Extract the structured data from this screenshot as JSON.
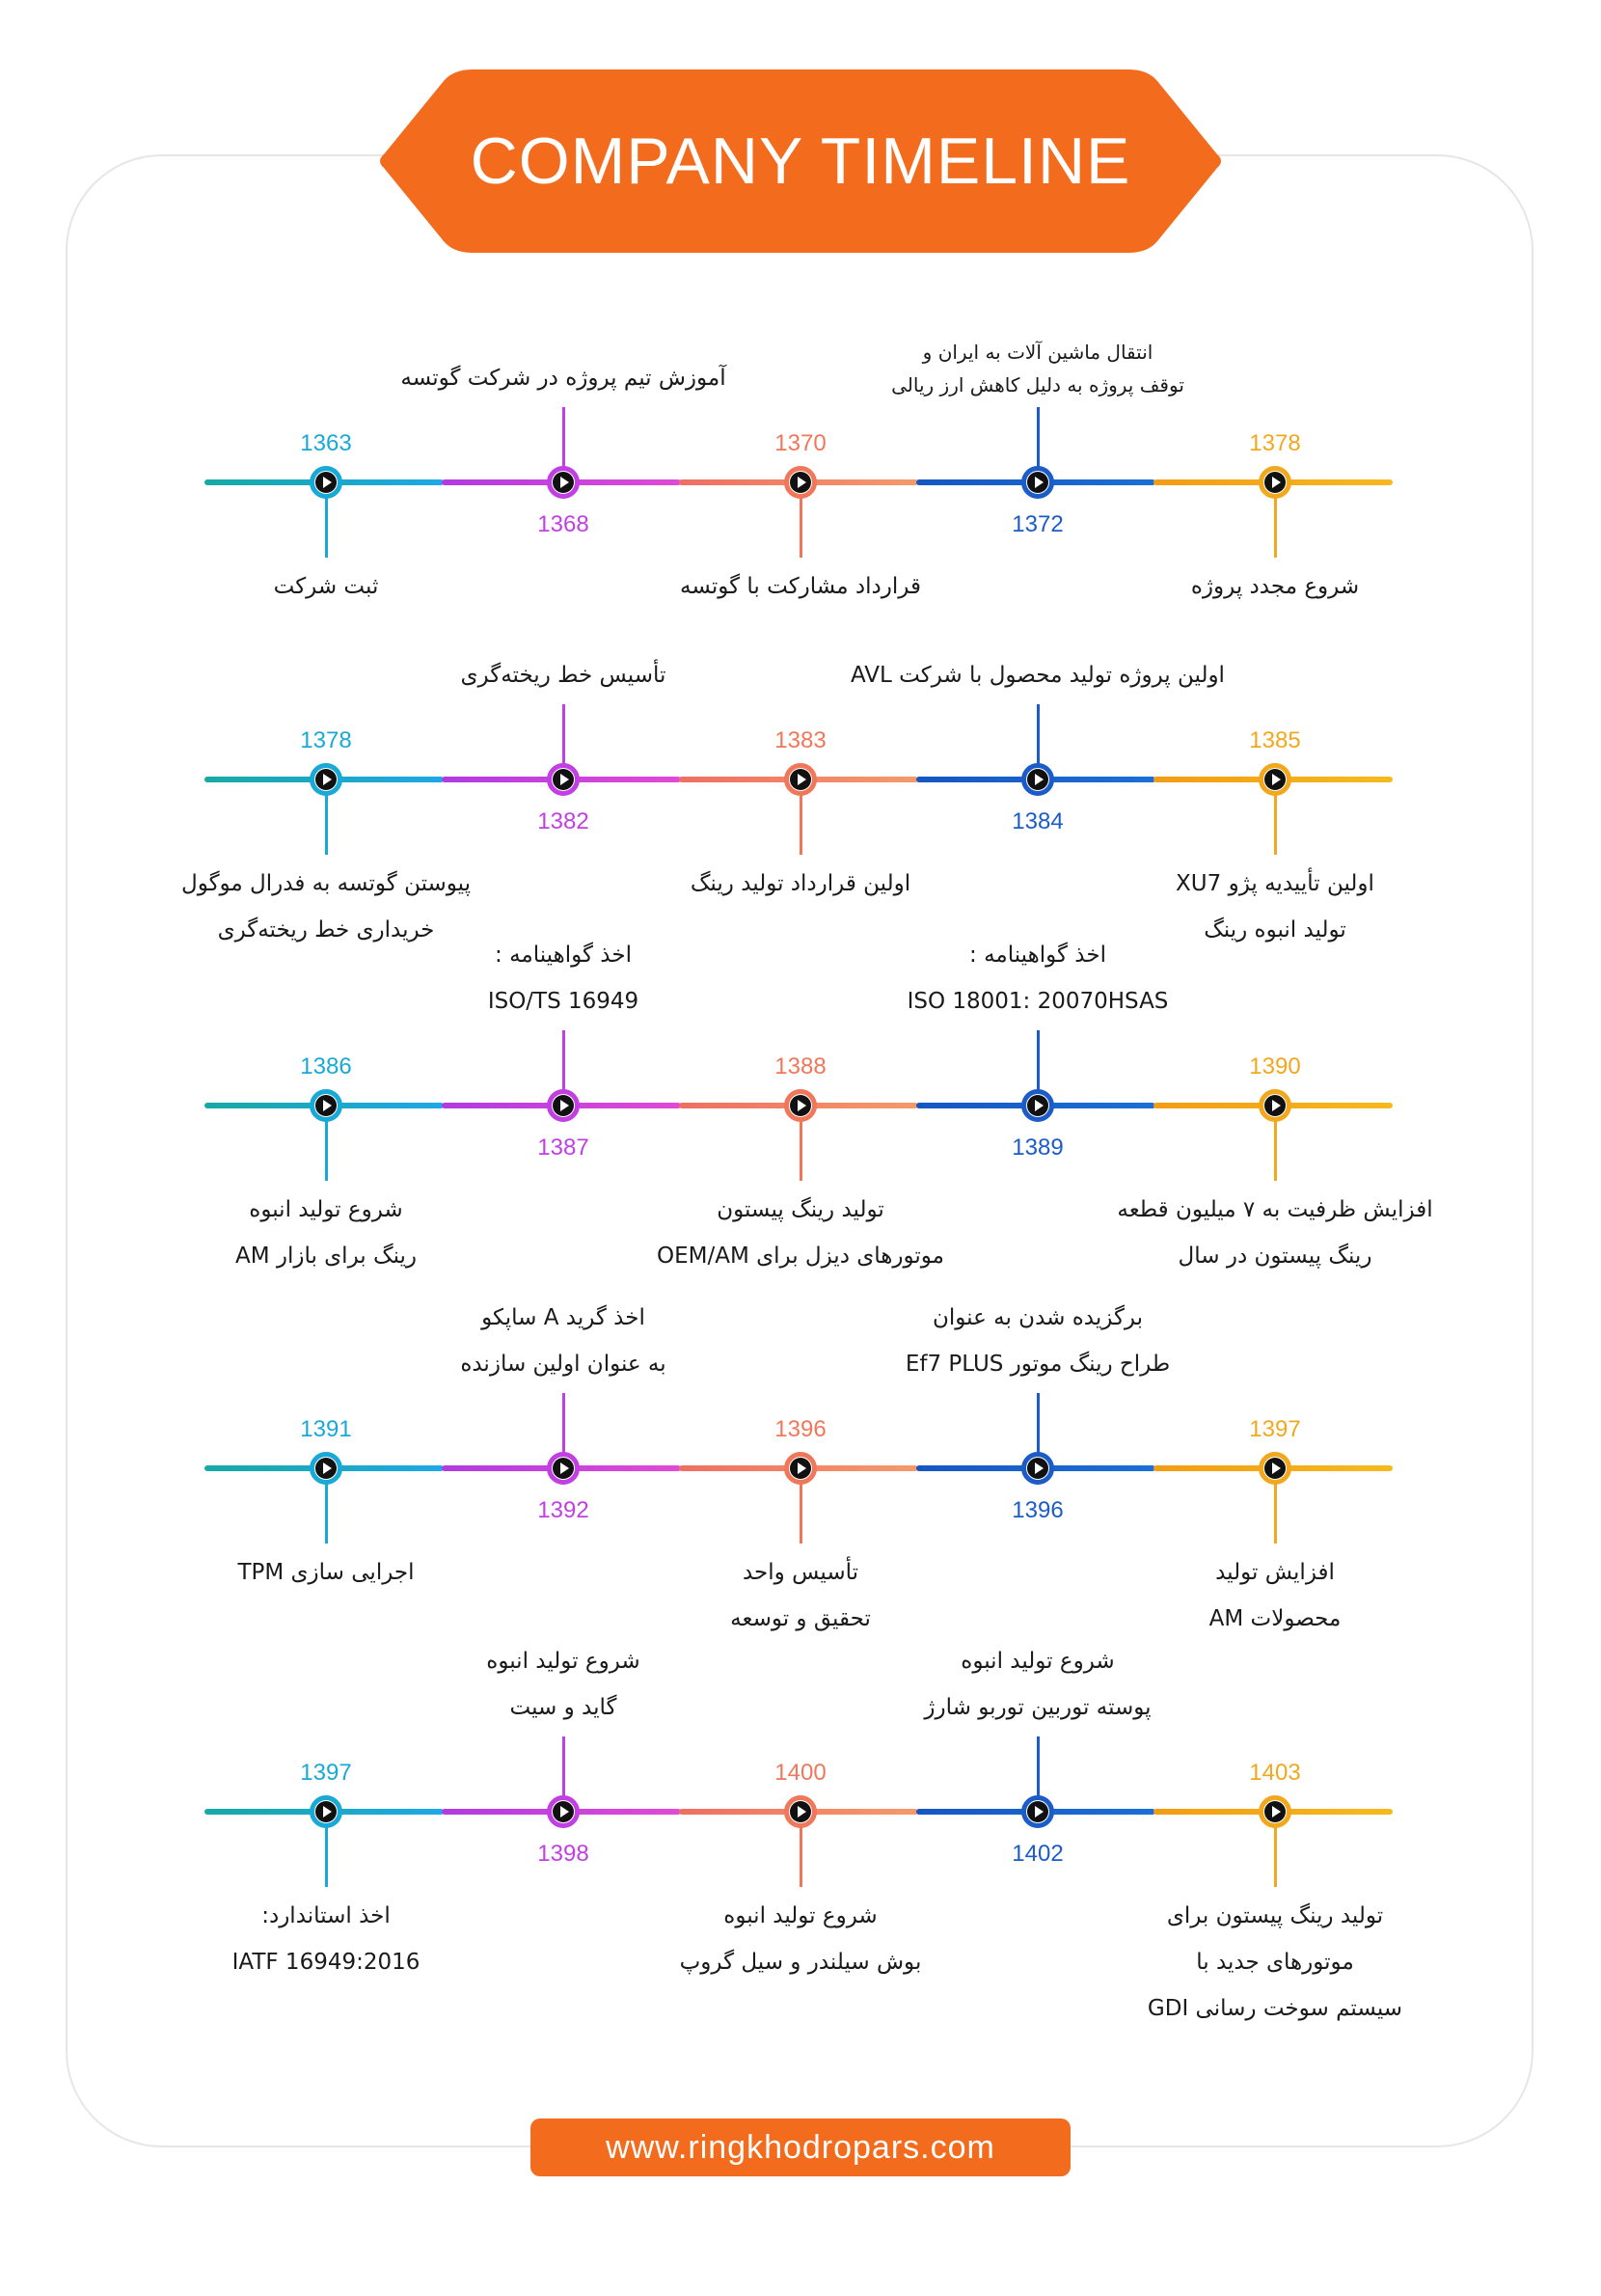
{
  "title": "COMPANY TIMELINE",
  "footer_url": "www.ringkhodropars.com",
  "colors": {
    "accent": "#f36b1c",
    "node_colors": [
      "#19a9d6",
      "#c13fe3",
      "#f0775a",
      "#1b5cc9",
      "#f2a81d"
    ]
  },
  "rows": [
    {
      "nodes": [
        {
          "year": "1363",
          "lines": [
            "ثبت شرکت"
          ]
        },
        {
          "year": "1368",
          "lines": [
            "آموزش تیم پروژه در شرکت گوتسه"
          ]
        },
        {
          "year": "1370",
          "lines": [
            "قرارداد مشارکت با گوتسه"
          ]
        },
        {
          "year": "1372",
          "lines": [
            "انتقال ماشین آلات به ایران و",
            "توقف پروژه به دلیل کاهش ارز ریالی"
          ]
        },
        {
          "year": "1378",
          "lines": [
            "شروع مجدد پروژه"
          ]
        }
      ]
    },
    {
      "nodes": [
        {
          "year": "1378",
          "lines": [
            "پیوستن گوتسه به فدرال موگول",
            "خریداری خط ریخته‌گری"
          ]
        },
        {
          "year": "1382",
          "lines": [
            "تأسیس خط ریخته‌گری"
          ]
        },
        {
          "year": "1383",
          "lines": [
            "اولین قرارداد تولید رینگ"
          ]
        },
        {
          "year": "1384",
          "lines": [
            "اولین پروژه تولید محصول با شرکت AVL"
          ]
        },
        {
          "year": "1385",
          "lines": [
            "اولین تأییدیه پژو XU7",
            "تولید انبوه رینگ"
          ]
        }
      ]
    },
    {
      "nodes": [
        {
          "year": "1386",
          "lines": [
            "شروع تولید انبوه",
            "رینگ  برای بازار AM"
          ]
        },
        {
          "year": "1387",
          "lines": [
            "اخذ گواهینامه :",
            "ISO/TS 16949"
          ]
        },
        {
          "year": "1388",
          "lines": [
            "تولید رینگ پیستون",
            "موتورهای دیزل برای OEM/AM"
          ]
        },
        {
          "year": "1389",
          "lines": [
            "اخذ گواهینامه :",
            "ISO 18001: 20070HSAS"
          ]
        },
        {
          "year": "1390",
          "lines": [
            "افزایش ظرفیت به ۷ میلیون قطعه",
            "رینگ پیستون در سال"
          ]
        }
      ]
    },
    {
      "nodes": [
        {
          "year": "1391",
          "lines": [
            "اجرایی سازی TPM"
          ]
        },
        {
          "year": "1392",
          "lines": [
            "اخذ گرید A ساپکو",
            "به عنوان اولین سازنده"
          ]
        },
        {
          "year": "1396",
          "lines": [
            "تأسیس واحد",
            "تحقیق و توسعه"
          ]
        },
        {
          "year": "1396",
          "lines": [
            "برگزیده شدن به عنوان",
            "طراح رینگ موتور Ef7 PLUS"
          ]
        },
        {
          "year": "1397",
          "lines": [
            "افزایش تولید",
            "محصولات AM"
          ]
        }
      ]
    },
    {
      "nodes": [
        {
          "year": "1397",
          "lines": [
            "اخذ استاندارد:",
            "IATF 16949:2016"
          ]
        },
        {
          "year": "1398",
          "lines": [
            "شروع تولید انبوه",
            "گاید و سیت"
          ]
        },
        {
          "year": "1400",
          "lines": [
            "شروع تولید انبوه",
            "بوش سیلندر و سیل گروپ"
          ]
        },
        {
          "year": "1402",
          "lines": [
            "شروع تولید انبوه",
            "پوسته توربین توربو شارژ"
          ]
        },
        {
          "year": "1403",
          "lines": [
            "تولید رینگ پیستون برای",
            "موتورهای جدید با",
            "سیستم سوخت رسانی GDI"
          ]
        }
      ]
    }
  ]
}
